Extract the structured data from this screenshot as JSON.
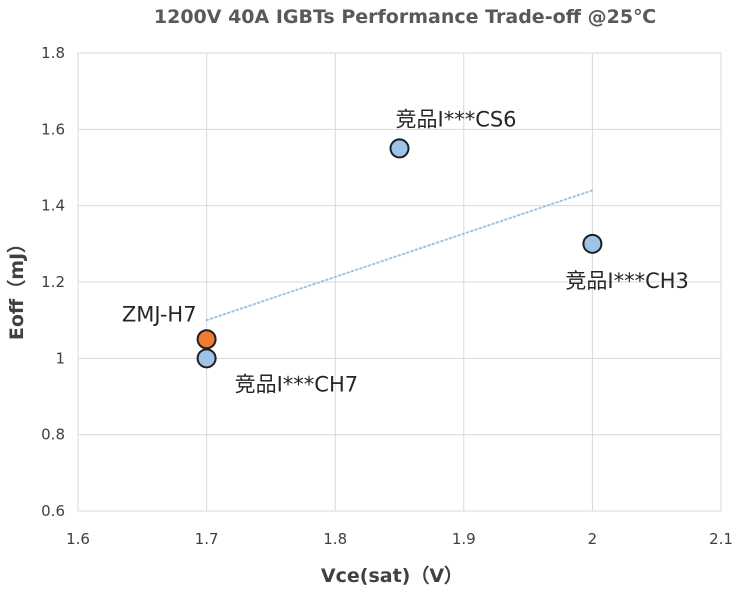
{
  "chart_data": {
    "type": "scatter",
    "title": "1200V 40A IGBTs Performance Trade-off @25℃",
    "xlabel": "Vce(sat)（V）",
    "ylabel": "Eoff（mJ）",
    "xlim": [
      1.6,
      2.1
    ],
    "ylim": [
      0.6,
      1.8
    ],
    "x_ticks": [
      1.6,
      1.7,
      1.8,
      1.9,
      2.0,
      2.1
    ],
    "x_tick_labels": [
      "1.6",
      "1.7",
      "1.8",
      "1.9",
      "2",
      "2.1"
    ],
    "y_ticks": [
      0.6,
      0.8,
      1.0,
      1.2,
      1.4,
      1.6,
      1.8
    ],
    "y_tick_labels": [
      "0.6",
      "0.8",
      "1",
      "1.2",
      "1.4",
      "1.6",
      "1.8"
    ],
    "grid": true,
    "points": [
      {
        "label": "竞品I***CH7",
        "x": 1.7,
        "y": 1.0,
        "color": "#9dc3e6",
        "label_pos": "below-right"
      },
      {
        "label": "ZMJ-H7",
        "x": 1.7,
        "y": 1.05,
        "color": "#ed7d31",
        "label_pos": "above-left"
      },
      {
        "label": "竞品I***CS6",
        "x": 1.85,
        "y": 1.55,
        "color": "#9dc3e6",
        "label_pos": "above"
      },
      {
        "label": "竞品I***CH3",
        "x": 2.0,
        "y": 1.3,
        "color": "#9dc3e6",
        "label_pos": "below"
      }
    ],
    "trendline": {
      "style": "dotted",
      "color": "#9dc3e6",
      "x": [
        1.7,
        2.0
      ],
      "y": [
        1.1,
        1.44
      ]
    }
  }
}
